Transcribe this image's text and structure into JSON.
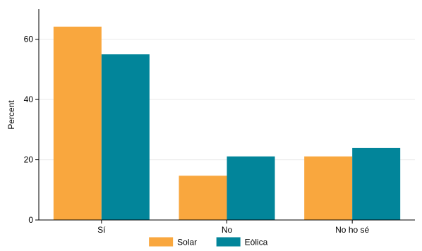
{
  "chart_data": {
    "type": "bar",
    "categories": [
      "Sí",
      "No",
      "No ho sé"
    ],
    "series": [
      {
        "name": "Solar",
        "values": [
          64.2,
          14.7,
          21.1
        ],
        "color": "#F9A73E"
      },
      {
        "name": "Eòlica",
        "values": [
          55.0,
          21.1,
          23.9
        ],
        "color": "#02859A"
      }
    ],
    "ylabel": "Percent",
    "xlabel": "",
    "ylim": [
      0,
      70
    ],
    "yticks": [
      0,
      20,
      40,
      60
    ],
    "grid": true,
    "legend_position": "bottom-center"
  }
}
